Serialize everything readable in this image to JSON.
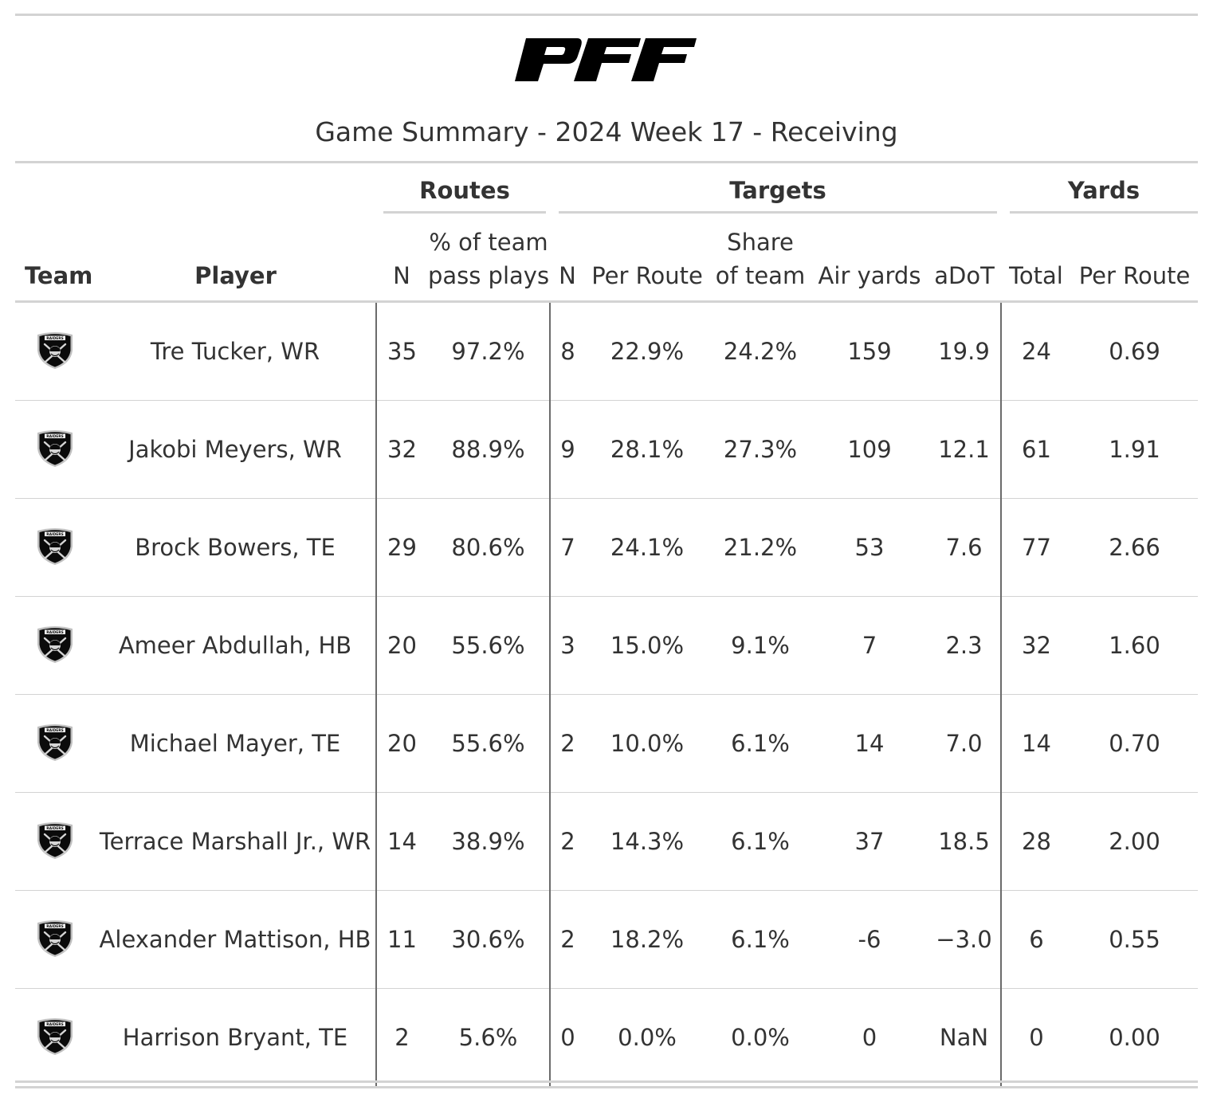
{
  "logo": {
    "text": "PFF",
    "icon": "pff-logo"
  },
  "title": "Game Summary - 2024 Week 17 - Receiving",
  "spanners": {
    "routes": "Routes",
    "targets": "Targets",
    "yards": "Yards"
  },
  "columns": {
    "team": "Team",
    "player": "Player",
    "routes_n": "N",
    "routes_pct_1": "% of team",
    "routes_pct_2": "pass plays",
    "targets_n": "N",
    "targets_per_route": "Per Route",
    "share_1": "Share",
    "share_2": "of team",
    "air_yards": "Air yards",
    "adot": "aDoT",
    "yards_total": "Total",
    "yards_per_route": "Per Route"
  },
  "team_logo": {
    "icon": "raiders-shield-icon",
    "text": "RAIDERS"
  },
  "rows": [
    {
      "player": "Tre Tucker, WR",
      "routes_n": "35",
      "routes_pct": "97.2%",
      "targets_n": "8",
      "targets_per_route": "22.9%",
      "share": "24.2%",
      "air_yards": "159",
      "adot": "19.9",
      "yards_total": "24",
      "yards_per_route": "0.69"
    },
    {
      "player": "Jakobi Meyers, WR",
      "routes_n": "32",
      "routes_pct": "88.9%",
      "targets_n": "9",
      "targets_per_route": "28.1%",
      "share": "27.3%",
      "air_yards": "109",
      "adot": "12.1",
      "yards_total": "61",
      "yards_per_route": "1.91"
    },
    {
      "player": "Brock Bowers, TE",
      "routes_n": "29",
      "routes_pct": "80.6%",
      "targets_n": "7",
      "targets_per_route": "24.1%",
      "share": "21.2%",
      "air_yards": "53",
      "adot": "7.6",
      "yards_total": "77",
      "yards_per_route": "2.66"
    },
    {
      "player": "Ameer Abdullah, HB",
      "routes_n": "20",
      "routes_pct": "55.6%",
      "targets_n": "3",
      "targets_per_route": "15.0%",
      "share": "9.1%",
      "air_yards": "7",
      "adot": "2.3",
      "yards_total": "32",
      "yards_per_route": "1.60"
    },
    {
      "player": "Michael Mayer, TE",
      "routes_n": "20",
      "routes_pct": "55.6%",
      "targets_n": "2",
      "targets_per_route": "10.0%",
      "share": "6.1%",
      "air_yards": "14",
      "adot": "7.0",
      "yards_total": "14",
      "yards_per_route": "0.70"
    },
    {
      "player": "Terrace Marshall Jr., WR",
      "routes_n": "14",
      "routes_pct": "38.9%",
      "targets_n": "2",
      "targets_per_route": "14.3%",
      "share": "6.1%",
      "air_yards": "37",
      "adot": "18.5",
      "yards_total": "28",
      "yards_per_route": "2.00"
    },
    {
      "player": "Alexander Mattison, HB",
      "routes_n": "11",
      "routes_pct": "30.6%",
      "targets_n": "2",
      "targets_per_route": "18.2%",
      "share": "6.1%",
      "air_yards": "-6",
      "adot": "−3.0",
      "yards_total": "6",
      "yards_per_route": "0.55"
    },
    {
      "player": "Harrison Bryant, TE",
      "routes_n": "2",
      "routes_pct": "5.6%",
      "targets_n": "0",
      "targets_per_route": "0.0%",
      "share": "0.0%",
      "air_yards": "0",
      "adot": "NaN",
      "yards_total": "0",
      "yards_per_route": "0.00"
    }
  ]
}
